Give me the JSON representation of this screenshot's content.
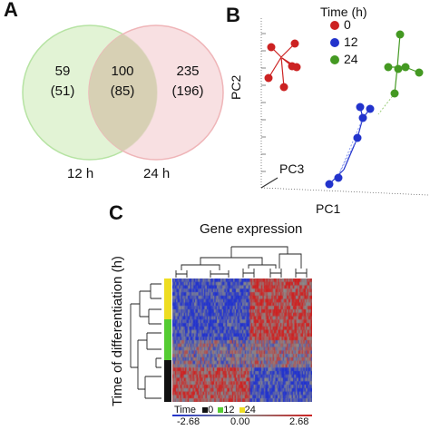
{
  "panels": {
    "a": "A",
    "b": "B",
    "c": "C"
  },
  "venn": {
    "left_only": {
      "count": "59",
      "sub": "(51)"
    },
    "overlap": {
      "count": "100",
      "sub": "(85)"
    },
    "right_only": {
      "count": "235",
      "sub": "(196)"
    },
    "left_label": "12 h",
    "right_label": "24 h",
    "colors": {
      "left_fill": "#dff2d0",
      "left_stroke": "#b6e3a3",
      "right_fill": "#f5d6d8",
      "right_stroke": "#efb5b8",
      "overlap": "#d7d0b4"
    }
  },
  "pca": {
    "x_label": "PC1",
    "y_label": "PC2",
    "z_label": "PC3",
    "legend": {
      "title": "Time (h)",
      "items": [
        {
          "label": "0",
          "color": "#cc2222"
        },
        {
          "label": "12",
          "color": "#2233cc"
        },
        {
          "label": "24",
          "color": "#449922"
        }
      ]
    }
  },
  "heatmap": {
    "title": "Gene expression",
    "y_label": "Time of differentiation (h)",
    "time_key_label": "Time",
    "time_key": [
      {
        "label": "0",
        "color": "#111111"
      },
      {
        "label": "12",
        "color": "#55cc33"
      },
      {
        "label": "24",
        "color": "#eedd22"
      }
    ],
    "row_groups": [
      {
        "label": "24",
        "color": "#eedd22",
        "rows": 6
      },
      {
        "label": "12",
        "color": "#55cc33",
        "rows": 6
      },
      {
        "label": "0",
        "color": "#111111",
        "rows": 6
      }
    ],
    "scale": {
      "min": "-2.68",
      "mid": "0.00",
      "max": "2.68"
    },
    "colors": {
      "low": "#2233cc",
      "mid": "#888888",
      "high": "#cc2222"
    }
  }
}
